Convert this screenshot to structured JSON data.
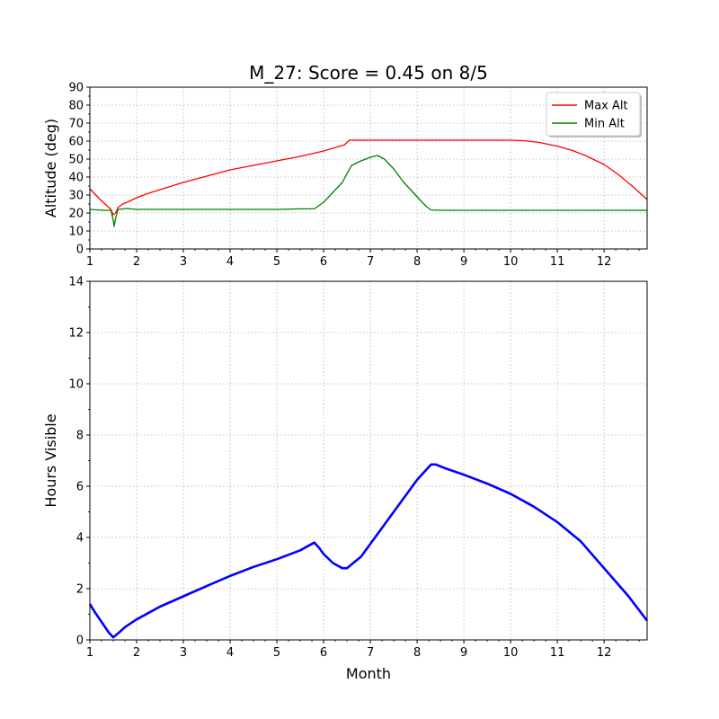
{
  "figure": {
    "title": "M_27: Score = 0.45 on 8/5"
  },
  "chart_data": [
    {
      "type": "line",
      "ylabel": "Altitude (deg)",
      "xlabel": "",
      "xlim": [
        1,
        12.92
      ],
      "ylim": [
        0,
        90
      ],
      "x_ticks": [
        1,
        2,
        3,
        4,
        5,
        6,
        7,
        8,
        9,
        10,
        11,
        12
      ],
      "y_ticks": [
        0,
        10,
        20,
        30,
        40,
        50,
        60,
        70,
        80,
        90
      ],
      "grid": true,
      "legend": "top-right",
      "series": [
        {
          "name": "Max Alt",
          "color": "#ff0000",
          "x": [
            1.0,
            1.2,
            1.45,
            1.5,
            1.55,
            1.6,
            1.7,
            1.8,
            2.0,
            2.2,
            2.5,
            3.0,
            3.5,
            4.0,
            4.5,
            5.0,
            5.5,
            6.0,
            6.3,
            6.45,
            6.55,
            7.0,
            8.0,
            9.0,
            10.0,
            10.3,
            10.6,
            11.0,
            11.3,
            11.6,
            12.0,
            12.3,
            12.6,
            12.92
          ],
          "y": [
            33.5,
            28,
            22,
            19,
            20,
            23,
            25,
            26,
            28.5,
            30.5,
            33,
            37,
            40.5,
            44,
            46.5,
            49,
            51.5,
            54.5,
            56.8,
            58,
            60.5,
            60.5,
            60.5,
            60.5,
            60.5,
            60.2,
            59.3,
            57.2,
            55,
            52,
            47,
            41.5,
            35,
            27.5
          ]
        },
        {
          "name": "Min Alt",
          "color": "#008000",
          "x": [
            1.0,
            1.3,
            1.45,
            1.5,
            1.52,
            1.55,
            1.6,
            1.8,
            2.0,
            3.0,
            4.0,
            5.0,
            5.5,
            5.8,
            6.0,
            6.2,
            6.4,
            6.5,
            6.6,
            6.8,
            7.0,
            7.15,
            7.3,
            7.5,
            7.7,
            8.0,
            8.2,
            8.3,
            8.5,
            9.0,
            10.0,
            11.0,
            12.0,
            12.92
          ],
          "y": [
            22,
            21.5,
            21.5,
            16,
            12.5,
            17,
            22,
            22.5,
            22,
            22,
            22,
            22,
            22.3,
            22.3,
            26,
            31.5,
            37,
            42,
            46.5,
            49,
            51,
            52,
            50,
            44.5,
            37.5,
            29,
            23.5,
            21.7,
            21.5,
            21.5,
            21.5,
            21.5,
            21.5,
            21.5
          ]
        }
      ]
    },
    {
      "type": "line",
      "xlabel": "Month",
      "ylabel": "Hours Visible",
      "xlim": [
        1,
        12.92
      ],
      "ylim": [
        0,
        14
      ],
      "x_ticks": [
        1,
        2,
        3,
        4,
        5,
        6,
        7,
        8,
        9,
        10,
        11,
        12
      ],
      "y_ticks": [
        0,
        2,
        4,
        6,
        8,
        10,
        12,
        14
      ],
      "grid": true,
      "series": [
        {
          "color": "#0000ff",
          "x": [
            1.0,
            1.1,
            1.25,
            1.4,
            1.5,
            1.6,
            1.75,
            2.0,
            2.5,
            3.0,
            3.5,
            4.0,
            4.5,
            5.0,
            5.5,
            5.8,
            5.9,
            6.0,
            6.2,
            6.4,
            6.5,
            6.6,
            6.8,
            7.0,
            7.5,
            8.0,
            8.3,
            8.4,
            8.6,
            9.0,
            9.5,
            10.0,
            10.5,
            11.0,
            11.5,
            12.0,
            12.5,
            12.92
          ],
          "y": [
            1.4,
            1.1,
            0.7,
            0.3,
            0.1,
            0.25,
            0.5,
            0.8,
            1.3,
            1.7,
            2.1,
            2.5,
            2.85,
            3.15,
            3.5,
            3.8,
            3.6,
            3.35,
            3.0,
            2.8,
            2.8,
            2.95,
            3.25,
            3.75,
            5.0,
            6.25,
            6.85,
            6.85,
            6.7,
            6.45,
            6.1,
            5.7,
            5.2,
            4.6,
            3.85,
            2.8,
            1.75,
            0.75
          ]
        }
      ]
    }
  ]
}
